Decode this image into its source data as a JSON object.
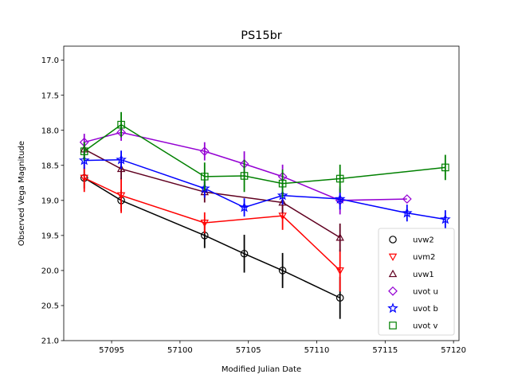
{
  "chart_data": {
    "type": "scatter",
    "title": "PS15br",
    "xlabel": "Modified Julian Date",
    "ylabel": "Observed Vega Magnitude",
    "xlim": [
      57091.5,
      57120.4
    ],
    "ylim": [
      16.8,
      21.0
    ],
    "y_inverted": true,
    "xticks": [
      57095,
      57100,
      57105,
      57110,
      57115,
      57120
    ],
    "yticks": [
      17.0,
      17.5,
      18.0,
      18.5,
      19.0,
      19.5,
      20.0,
      20.5,
      21.0
    ],
    "xtick_labels": [
      "57095",
      "57100",
      "57105",
      "57110",
      "57115",
      "57120"
    ],
    "ytick_labels": [
      "17.0",
      "17.5",
      "18.0",
      "18.5",
      "19.0",
      "19.5",
      "20.0",
      "20.5",
      "21.0"
    ],
    "grid": false,
    "legend_position": "lower-right",
    "series": [
      {
        "name": "uvw2",
        "color": "#000000",
        "marker": "circle",
        "x": [
          57093.0,
          57095.7,
          57101.8,
          57104.7,
          57107.5,
          57111.7
        ],
        "y": [
          18.68,
          19.0,
          19.5,
          19.76,
          20.0,
          20.39
        ],
        "err": [
          0.15,
          0.15,
          0.18,
          0.27,
          0.25,
          0.3
        ]
      },
      {
        "name": "uvm2",
        "color": "#ff0000",
        "marker": "triangle-down",
        "x": [
          57093.0,
          57095.7,
          57101.8,
          57107.5,
          57111.7
        ],
        "y": [
          18.68,
          18.93,
          19.32,
          19.22,
          20.0
        ],
        "err": [
          0.2,
          0.25,
          0.15,
          0.2,
          0.3
        ]
      },
      {
        "name": "uvw1",
        "color": "#600020",
        "marker": "triangle-up",
        "x": [
          57093.0,
          57095.7,
          57101.8,
          57107.5,
          57111.7
        ],
        "y": [
          18.27,
          18.55,
          18.88,
          19.03,
          19.53
        ],
        "err": [
          0.1,
          0.15,
          0.15,
          0.15,
          0.2
        ]
      },
      {
        "name": "uvot u",
        "color": "#9400d3",
        "marker": "diamond",
        "x": [
          57093.0,
          57095.7,
          57101.8,
          57104.7,
          57107.5,
          57111.7,
          57116.6
        ],
        "y": [
          18.17,
          18.03,
          18.3,
          18.48,
          18.66,
          19.0,
          18.98
        ],
        "err": [
          0.12,
          0.12,
          0.13,
          0.18,
          0.17,
          0.2,
          0.0
        ]
      },
      {
        "name": "uvot b",
        "color": "#0000ff",
        "marker": "star",
        "x": [
          57093.0,
          57095.7,
          57101.8,
          57104.7,
          57107.5,
          57111.7,
          57116.6,
          57119.4
        ],
        "y": [
          18.43,
          18.42,
          18.83,
          19.1,
          18.93,
          18.98,
          19.18,
          19.27
        ],
        "err": [
          0.12,
          0.13,
          0.13,
          0.13,
          0.13,
          0.15,
          0.12,
          0.13
        ]
      },
      {
        "name": "uvot v",
        "color": "#008000",
        "marker": "square",
        "x": [
          57093.0,
          57095.7,
          57101.8,
          57104.7,
          57107.5,
          57111.7,
          57119.4
        ],
        "y": [
          18.3,
          17.92,
          18.66,
          18.65,
          18.76,
          18.69,
          18.53
        ],
        "err": [
          0.13,
          0.18,
          0.2,
          0.23,
          0.2,
          0.2,
          0.18
        ]
      }
    ]
  }
}
